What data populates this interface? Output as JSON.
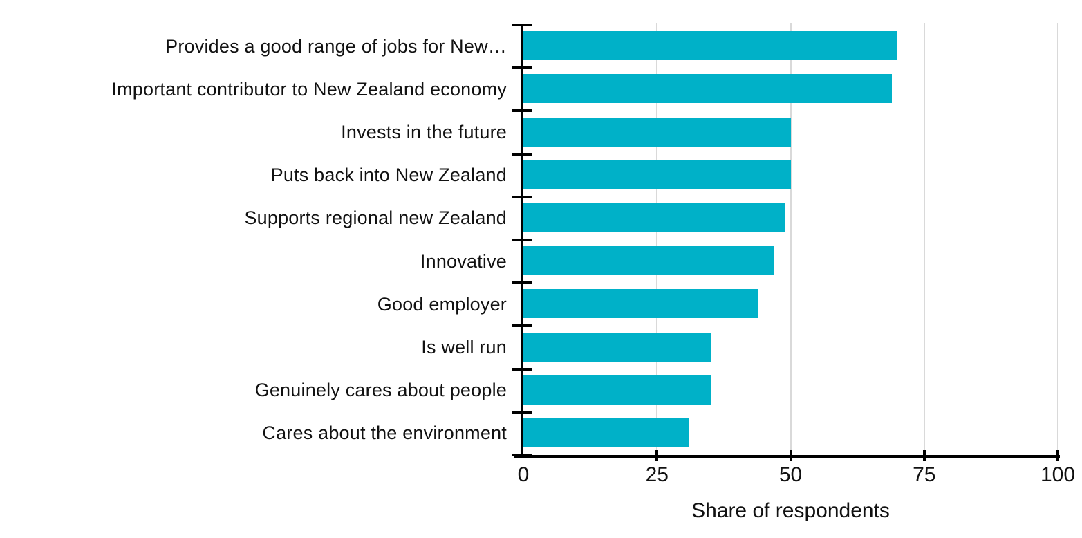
{
  "chart_data": {
    "type": "bar",
    "orientation": "horizontal",
    "categories": [
      "Provides a good range of jobs for New…",
      "Important contributor to New Zealand economy",
      "Invests in the future",
      "Puts back into New Zealand",
      "Supports regional new Zealand",
      "Innovative",
      "Good employer",
      "Is well run",
      "Genuinely cares about people",
      "Cares about the environment"
    ],
    "values": [
      70,
      69,
      50,
      50,
      49,
      47,
      44,
      35,
      35,
      31
    ],
    "xlabel": "Share of respondents",
    "xlim": [
      0,
      100
    ],
    "xticks": [
      0,
      25,
      50,
      75,
      100
    ],
    "legend_position": "none",
    "grid": "vertical",
    "colors": {
      "bar": "#00b1c8",
      "gridline": "#d9d9d9",
      "axis": "#000000",
      "text": "#111111"
    }
  }
}
